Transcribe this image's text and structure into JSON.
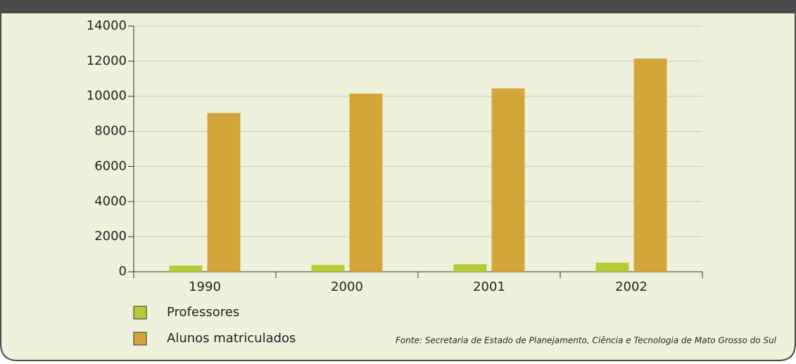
{
  "chart_data": {
    "type": "bar",
    "categories": [
      "1990",
      "2000",
      "2001",
      "2002"
    ],
    "series": [
      {
        "name": "Professores",
        "color": "#b7c934",
        "values": [
          350,
          390,
          430,
          520
        ]
      },
      {
        "name": "Alunos matriculados",
        "color": "#d3a63a",
        "values": [
          9050,
          10150,
          10450,
          12150
        ]
      }
    ],
    "ylim": [
      0,
      14000
    ],
    "yticks": [
      0,
      2000,
      4000,
      6000,
      8000,
      10000,
      12000,
      14000
    ],
    "grid": true,
    "legend": "bottom-left",
    "source": "Fonte: Secretaria de Estado de Planejamento, Ciência e Tecnologia de Mato Grosso do Sul"
  }
}
